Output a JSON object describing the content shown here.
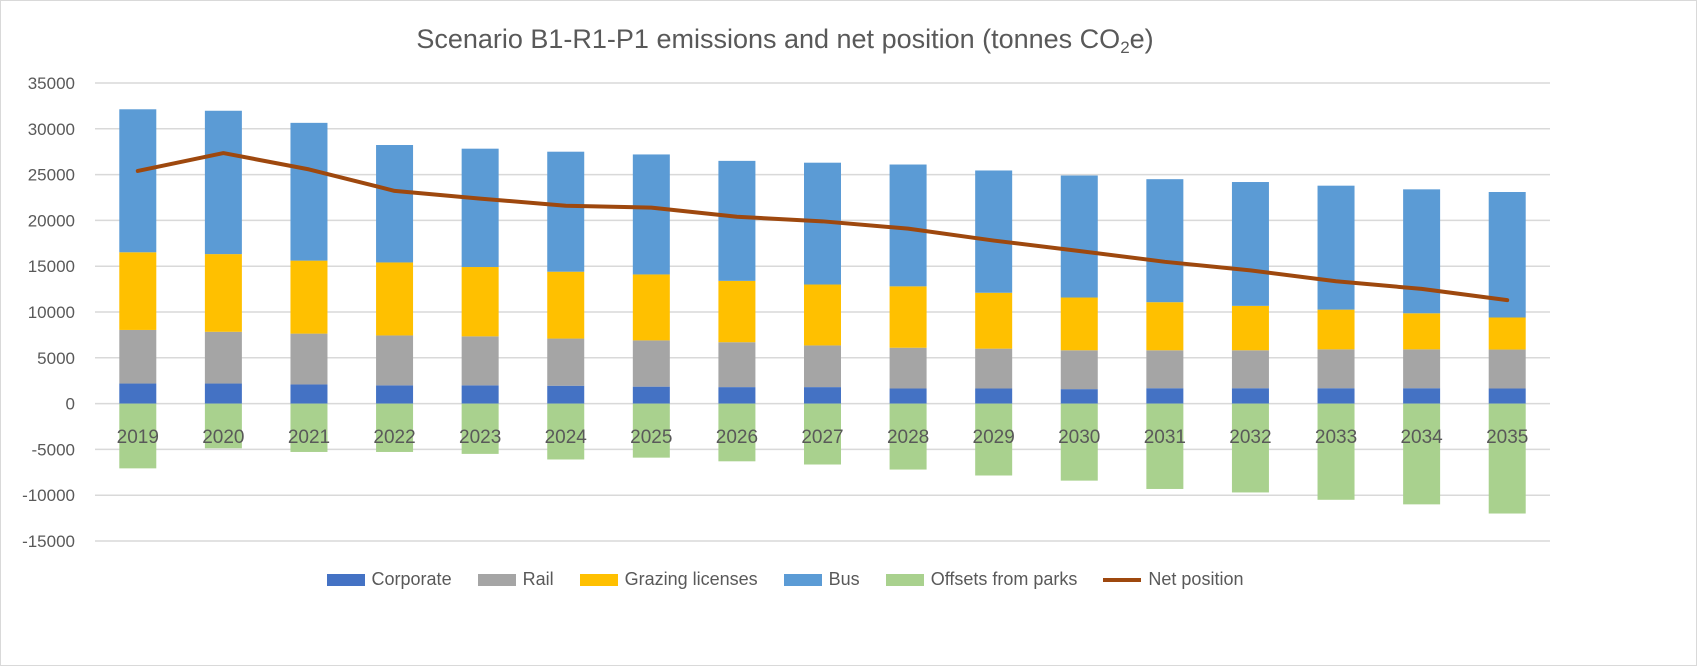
{
  "chart_data": {
    "type": "bar",
    "stacked": true,
    "title": "Scenario B1-R1-P1 emissions and net position (tonnes CO2e)",
    "title_parts": {
      "main": "Scenario B1-R1-P1 emissions and net position (tonnes CO",
      "sub": "2",
      "tail": "e)"
    },
    "xlabel": "",
    "ylabel": "",
    "ylim": [
      -15000,
      35000
    ],
    "yticks": [
      35000,
      30000,
      25000,
      20000,
      15000,
      10000,
      5000,
      0,
      -5000,
      -10000,
      -15000
    ],
    "grid": true,
    "legend_position": "bottom",
    "categories": [
      "2019",
      "2020",
      "2021",
      "2022",
      "2023",
      "2024",
      "2025",
      "2026",
      "2027",
      "2028",
      "2029",
      "2030",
      "2031",
      "2032",
      "2033",
      "2034",
      "2035"
    ],
    "series": [
      {
        "name": "Corporate",
        "type": "bar",
        "color": "#4472c4",
        "values": [
          2190,
          2190,
          2090,
          1990,
          1990,
          1950,
          1850,
          1800,
          1800,
          1650,
          1650,
          1580,
          1680,
          1680,
          1680,
          1680,
          1650
        ]
      },
      {
        "name": "Rail",
        "type": "bar",
        "color": "#a5a5a5",
        "values": [
          5850,
          5650,
          5550,
          5450,
          5350,
          5150,
          5050,
          4900,
          4550,
          4450,
          4350,
          4240,
          4140,
          4140,
          4240,
          4240,
          4250
        ]
      },
      {
        "name": "Grazing licenses",
        "type": "bar",
        "color": "#ffc000",
        "values": [
          8480,
          8480,
          7970,
          7970,
          7570,
          7300,
          7200,
          6700,
          6650,
          6700,
          6100,
          5760,
          5250,
          4850,
          4340,
          3940,
          3500
        ]
      },
      {
        "name": "Bus",
        "type": "bar",
        "color": "#5b9bd5",
        "values": [
          15610,
          15650,
          15040,
          12820,
          12920,
          13100,
          13100,
          13100,
          13300,
          13300,
          13350,
          13320,
          13430,
          13520,
          13530,
          13530,
          13700
        ]
      },
      {
        "name": "Offsets from parks",
        "type": "bar",
        "color": "#a9d18e",
        "values": [
          -7070,
          -4880,
          -5280,
          -5280,
          -5490,
          -6100,
          -5900,
          -6300,
          -6650,
          -7200,
          -7850,
          -8410,
          -9320,
          -9700,
          -10500,
          -11000,
          -12000
        ]
      },
      {
        "name": "Net position",
        "type": "line",
        "color": "#9e480e",
        "values": [
          25400,
          27350,
          25570,
          23220,
          22380,
          21600,
          21400,
          20400,
          19900,
          19100,
          17800,
          16660,
          15480,
          14540,
          13360,
          12520,
          11300
        ]
      }
    ]
  }
}
